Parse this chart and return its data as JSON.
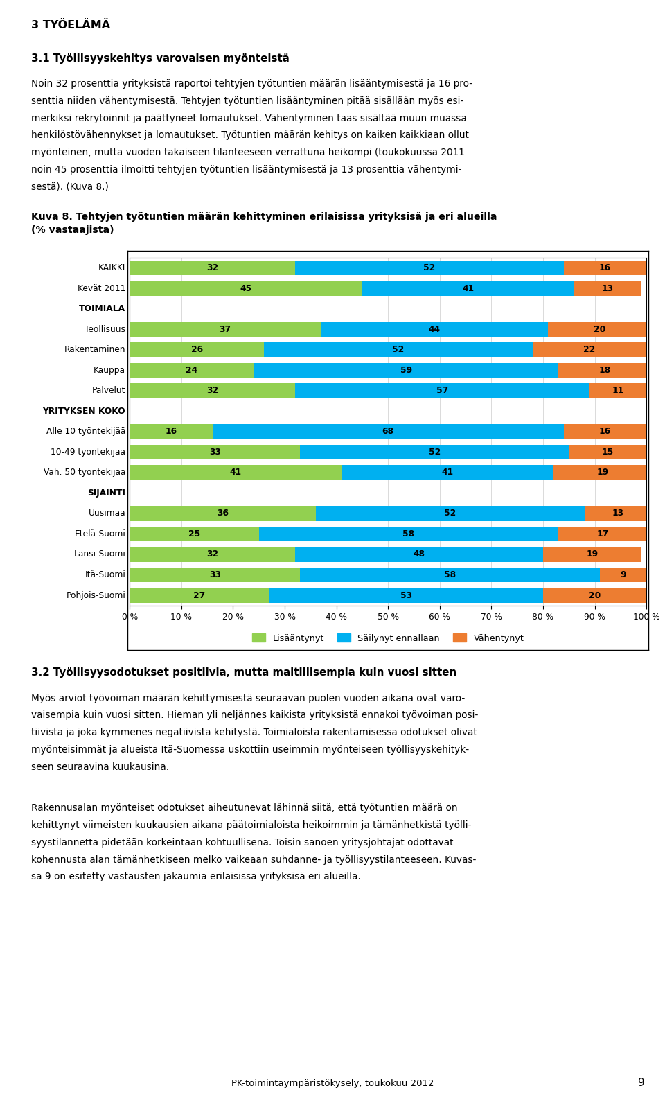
{
  "title": "Kuva 8. Tehtyjen työtuntien määrän kehittyminen erilaisissa yrityksisä ja eri alueilla\n(% vastaajista)",
  "header1": "3 TYÖELÄMÄ",
  "header2": "3.1 Työllisyyskehitys varovaisen myönteistä",
  "para1_lines": [
    "Noin 32 prosenttia yrityksistä raportoi tehtyjen työtuntien määrän lisääntymisestä ja 16 pro-",
    "senttia niiden vähentymisestä. Tehtyjen työtuntien lisääntyminen pitää sisällään myös esi-",
    "merkiksi rekrytoinnit ja päättyneet lomautukset. Vähentyminen taas sisältää muun muassa",
    "henkilöstövähennykset ja lomautukset. Työtuntien määrän kehitys on kaiken kaikkiaan ollut",
    "myönteinen, mutta vuoden takaiseen tilanteeseen verrattuna heikompi (toukokuussa 2011",
    "noin 45 prosenttia ilmoitti tehtyjen työtuntien lisääntymisestä ja 13 prosenttia vähentymi-",
    "sestä). (Kuva 8.)"
  ],
  "header3": "3.2 Työllisyysodotukset positiivia, mutta maltillisempia kuin vuosi sitten",
  "para2_lines": [
    "Myös arviot työvoiman määrän kehittymisestä seuraavan puolen vuoden aikana ovat varo-",
    "vaisempia kuin vuosi sitten. Hieman yli neljännes kaikista yrityksistä ennakoi työvoiman posi-",
    "tiivista ja joka kymmenes negatiivista kehitystä. Toimialoista rakentamisessa odotukset olivat",
    "myönteisimmät ja alueista Itä-Suomessa uskottiin useimmin myönteiseen työllisyyskehityk-",
    "seen seuraavina kuukausina."
  ],
  "para3_lines": [
    "Rakennusalan myönteiset odotukset aiheutunevat lähinnä siitä, että työtuntien määrä on",
    "kehittynyt viimeisten kuukausien aikana päätoimialoista heikoimmin ja tämänhetkistä työlli-",
    "syystilannetta pidetään korkeintaan kohtuullisena. Toisin sanoen yritysjohtajat odottavat",
    "kohennusta alan tämänhetkiseen melko vaikeaan suhdanne- ja työllisyystilanteeseen. Kuvas-",
    "sa 9 on esitetty vastausten jakaumia erilaisissa yrityksisä eri alueilla."
  ],
  "footer": "PK-toimintaympäristökysely, toukokuu 2012",
  "page_number": "9",
  "categories": [
    "KAIKKI",
    "Kevät 2011",
    "TOIMIALA",
    "Teollisuus",
    "Rakentaminen",
    "Kauppa",
    "Palvelut",
    "YRITYKSEN KOKO",
    "Alle 10 työntekijää",
    "10-49 työntekijää",
    "Väh. 50 työntekijää",
    "SIJAINTI",
    "Uusimaa",
    "Etelä-Suomi",
    "Länsi-Suomi",
    "Itä-Suomi",
    "Pohjois-Suomi"
  ],
  "header_rows": [
    "TOIMIALA",
    "YRITYKSEN KOKO",
    "SIJAINTI"
  ],
  "lisaantynyt": [
    32,
    45,
    null,
    37,
    26,
    24,
    32,
    null,
    16,
    33,
    41,
    null,
    36,
    25,
    32,
    33,
    27
  ],
  "sailynyt": [
    52,
    41,
    null,
    44,
    52,
    59,
    57,
    null,
    68,
    52,
    41,
    null,
    52,
    58,
    48,
    58,
    53
  ],
  "vahentynyt": [
    16,
    13,
    null,
    20,
    22,
    18,
    11,
    null,
    16,
    15,
    19,
    null,
    13,
    17,
    19,
    9,
    20
  ],
  "color_lisaantynyt": "#92d050",
  "color_sailynyt": "#00b0f0",
  "color_vahentynyt": "#ed7d31",
  "legend_lisaantynyt": "Lisääntynyt",
  "legend_sailynyt": "Säilynyt ennallaan",
  "legend_vahentynyt": "Vähentynyt"
}
